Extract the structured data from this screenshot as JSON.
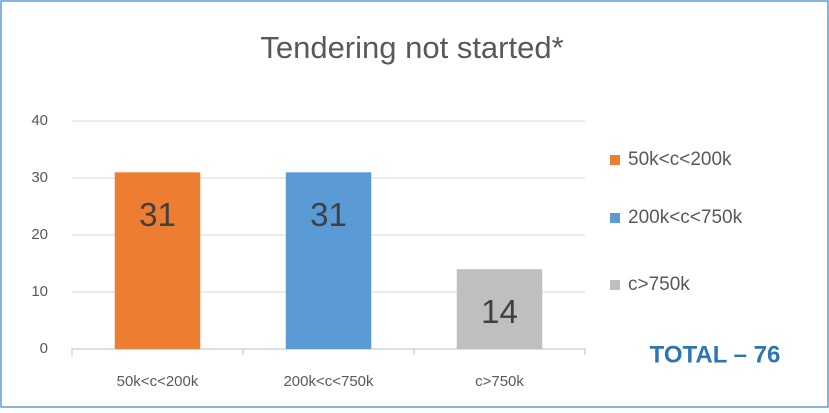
{
  "chart_data": {
    "type": "bar",
    "title": "Tendering not started*",
    "categories": [
      "50k<c<200k",
      "200k<c<750k",
      "c>750k"
    ],
    "values": [
      31,
      31,
      14
    ],
    "colors": [
      "#ed7d31",
      "#5b9bd5",
      "#bfbfbf"
    ],
    "ylim": [
      0,
      40
    ],
    "yticks": [
      0,
      10,
      20,
      30,
      40
    ],
    "grid": true,
    "legend": "right",
    "annotation": "TOTAL – 76"
  }
}
